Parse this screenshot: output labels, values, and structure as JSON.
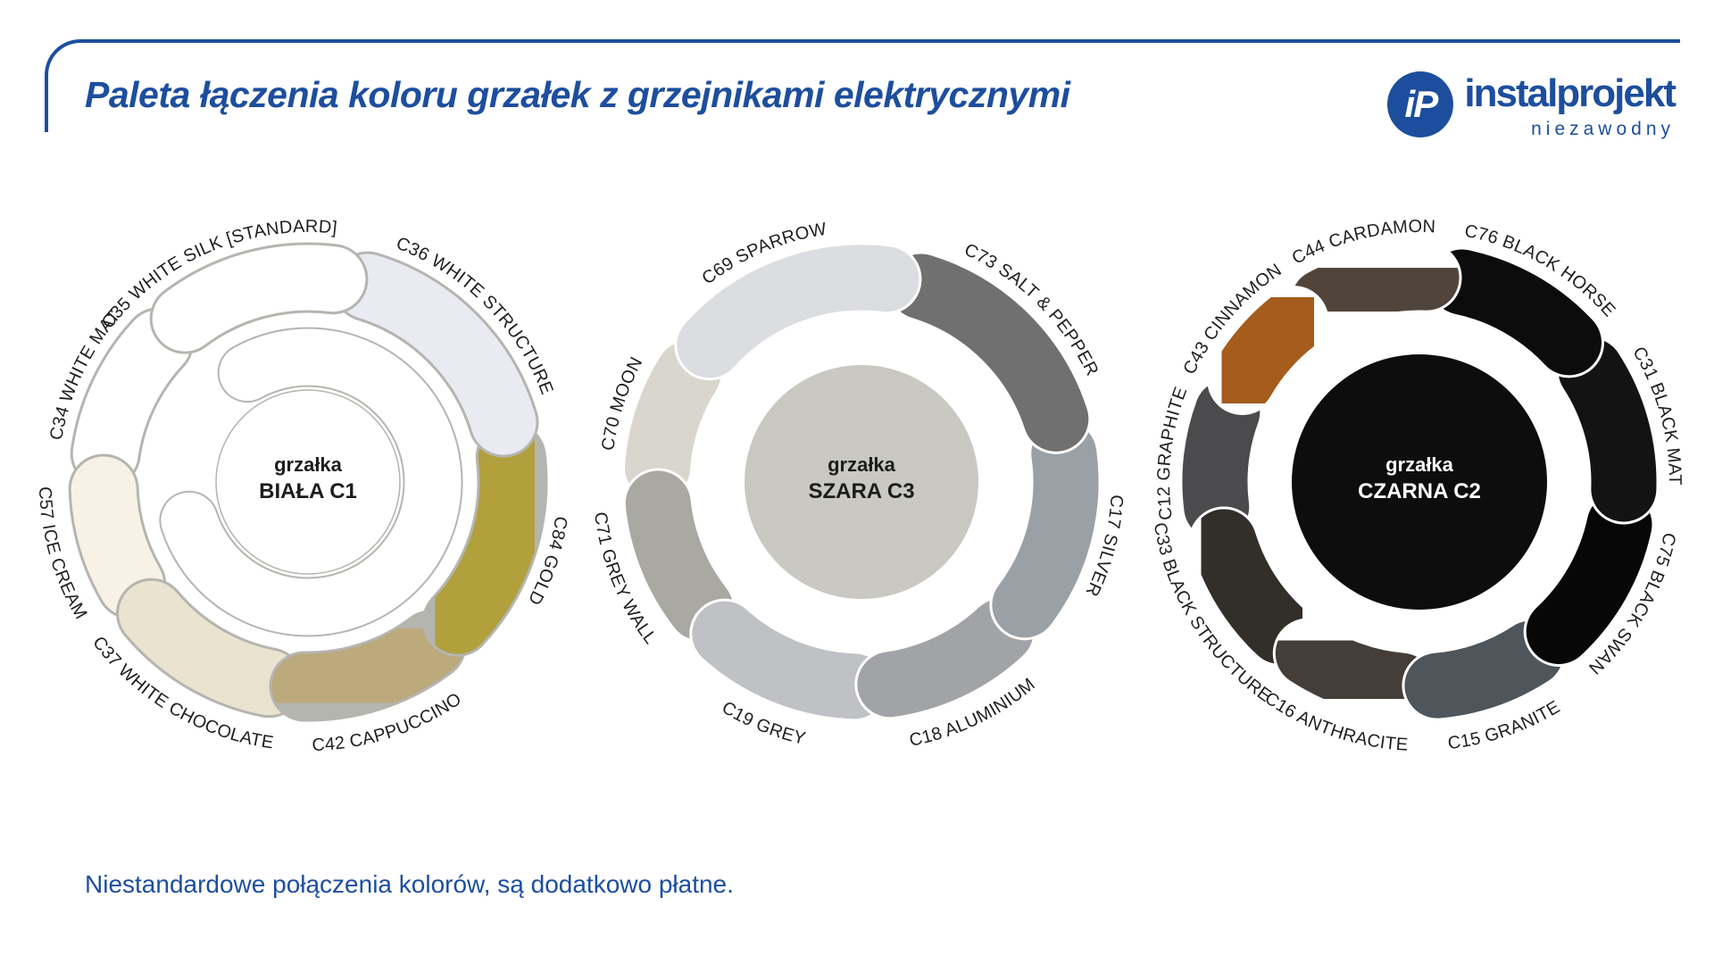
{
  "brand": {
    "accent_blue": "#1d4e9e",
    "label_text_color": "#1f1f1f",
    "outline_gray": "#b5b5b0"
  },
  "header": {
    "title": "Paleta łączenia koloru grzałek z grzejnikami elektrycznymi"
  },
  "logo": {
    "monogram": "iP",
    "wordmark": "instalprojekt",
    "tagline": "niezawodny"
  },
  "footer": {
    "note": "Niestandardowe połączenia kolorów, są dodatkowo płatne."
  },
  "donuts": [
    {
      "id": "biala",
      "center_label_line1": "grzałka",
      "center_label_line2": "BIAŁA C1",
      "center_fill": "#ffffff",
      "center_stroke": "#b5b5b0",
      "center_text_color": "#1c1c1c",
      "border_color": "#b5b5b0",
      "inner_ring": {
        "start": 331,
        "sweep": 281,
        "color": "#ffffff"
      },
      "segments": [
        {
          "code": "C35",
          "name": "WHITE SILK [STANDARD]",
          "label": "C35 WHITE SILK [STANDARD]",
          "color": "#ffffff",
          "start": 318,
          "end": 372,
          "label_mid": 337,
          "textured": false
        },
        {
          "code": "C36",
          "name": "WHITE STRUCTURE",
          "label": "C36 WHITE STRUCTURE",
          "color": "#e9eaf2",
          "start": 12,
          "end": 78,
          "textured": false
        },
        {
          "code": "C84",
          "name": "GOLD",
          "label": "C84 GOLD",
          "color": "#b2a03c",
          "start": 78,
          "end": 138,
          "textured": true
        },
        {
          "code": "C42",
          "name": "CAPPUCCINO",
          "label": "C42 CAPPUCCINO",
          "color": "#bca97b",
          "start": 138,
          "end": 186,
          "textured": true
        },
        {
          "code": "C37",
          "name": "WHITE CHOCOLATE",
          "label": "C37 WHITE CHOCOLATE",
          "color": "#eae3d0",
          "start": 186,
          "end": 235,
          "textured": false
        },
        {
          "code": "C57",
          "name": "ICE CREAM",
          "label": "C57 ICE CREAM",
          "color": "#f7f2e5",
          "start": 235,
          "end": 273,
          "textured": false
        },
        {
          "code": "C34",
          "name": "WHITE MAT",
          "label": "C34 WHITE MAT",
          "color": "#ffffff",
          "start": 273,
          "end": 318,
          "textured": false
        }
      ]
    },
    {
      "id": "szara",
      "center_label_line1": "grzałka",
      "center_label_line2": "SZARA C3",
      "center_fill": "#c9c8c2",
      "center_text_color": "#1c1c1c",
      "border_color": "#ffffff",
      "segments": [
        {
          "code": "C69",
          "name": "SPARROW",
          "label": "C69 SPARROW",
          "color": "#dcdde1",
          "start": 307,
          "end": 372,
          "label_mid": 337,
          "textured": false
        },
        {
          "code": "C73",
          "name": "SALT & PEPPER",
          "label": "C73 SALT & PEPPER",
          "color": "#6f6f6f",
          "start": 12,
          "end": 77,
          "textured": true
        },
        {
          "code": "C17",
          "name": "SILVER",
          "label": "C17 SILVER",
          "color": "#9aa0a5",
          "start": 77,
          "end": 132,
          "textured": false
        },
        {
          "code": "C18",
          "name": "ALUMINIUM",
          "label": "C18 ALUMINIUM",
          "color": "#a2a3a6",
          "start": 132,
          "end": 177,
          "textured": false
        },
        {
          "code": "C19",
          "name": "GREY",
          "label": "C19 GREY",
          "color": "#c0c1c4",
          "start": 177,
          "end": 227,
          "textured": false
        },
        {
          "code": "C71",
          "name": "GREY WALL",
          "label": "C71 GREY WALL",
          "color": "#a9a8a2",
          "start": 227,
          "end": 269,
          "textured": false
        },
        {
          "code": "C70",
          "name": "MOON",
          "label": "C70 MOON",
          "color": "#d8d6cd",
          "start": 269,
          "end": 307,
          "textured": false
        }
      ]
    },
    {
      "id": "czarna",
      "center_label_line1": "grzałka",
      "center_label_line2": "CZARNA C2",
      "center_fill": "#0d0d0d",
      "center_text_color": "#ffffff",
      "border_color": "#ffffff",
      "segments": [
        {
          "code": "C43",
          "name": "CINNAMON",
          "label": "C43 CINNAMON",
          "color": "#a55b1e",
          "start": 295,
          "end": 327,
          "textured": true
        },
        {
          "code": "C44",
          "name": "CARDAMON",
          "label": "C44 CARDAMON",
          "color": "#51453b",
          "start": 327,
          "end": 367,
          "textured": true
        },
        {
          "code": "C76",
          "name": "BLACK HORSE",
          "label": "C76 BLACK HORSE",
          "color": "#0c0c0c",
          "start": 7,
          "end": 52,
          "textured": false
        },
        {
          "code": "C31",
          "name": "BLACK MAT",
          "label": "C31 BLACK MAT",
          "color": "#131313",
          "start": 52,
          "end": 97,
          "textured": false
        },
        {
          "code": "C75",
          "name": "BLACK SWAN",
          "label": "C75 BLACK SWAN",
          "color": "#070707",
          "start": 97,
          "end": 142,
          "textured": false
        },
        {
          "code": "C15",
          "name": "GRANITE",
          "label": "C15 GRANITE",
          "color": "#4e555b",
          "start": 142,
          "end": 180,
          "textured": false
        },
        {
          "code": "C16",
          "name": "ANTHRACITE",
          "label": "C16 ANTHRACITE",
          "color": "#453c37",
          "start": 180,
          "end": 218,
          "textured": true
        },
        {
          "code": "C33",
          "name": "BLACK STRUCTURE",
          "label": "C33 BLACK STRUCTURE",
          "color": "#302d2b",
          "start": 218,
          "end": 258,
          "textured": true
        },
        {
          "code": "C12",
          "name": "GRAPHITE",
          "label": "C12 GRAPHITE",
          "color": "#4b4b4d",
          "start": 258,
          "end": 295,
          "textured": false
        }
      ]
    }
  ]
}
